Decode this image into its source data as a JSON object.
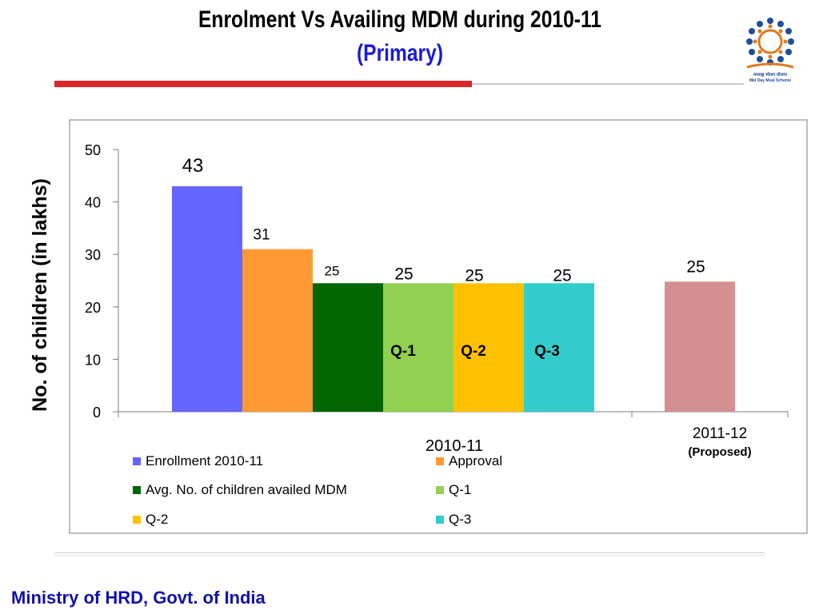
{
  "slide": {
    "title": "Enrolment Vs Availing MDM during  2010-11",
    "subtitle": "(Primary)",
    "footer": "Ministry of HRD, Govt. of India",
    "logo_text_1": "मध्याह्न भोजन योजना",
    "logo_text_2": "Mid Day Meal Scheme"
  },
  "chart_data": {
    "type": "bar",
    "ylabel": "No. of children (in lakhs)",
    "ylim": [
      0,
      50
    ],
    "yticks": [
      "0",
      "10",
      "20",
      "30",
      "40",
      "50"
    ],
    "groups": [
      {
        "label": "2010-11",
        "sublabel": ""
      },
      {
        "label": "2011-12",
        "sublabel": "(Proposed)"
      }
    ],
    "bars": [
      {
        "group": 0,
        "series": "Enrollment 2010-11",
        "value": 43,
        "data_label": "43",
        "inner_label": "",
        "color": "#6666ff"
      },
      {
        "group": 0,
        "series": "Approval",
        "value": 31,
        "data_label": "31",
        "inner_label": "",
        "color": "#ff9933"
      },
      {
        "group": 0,
        "series": "Avg. No. of children availed MDM",
        "value": 24.5,
        "data_label": "25",
        "inner_label": "",
        "color": "#006600"
      },
      {
        "group": 0,
        "series": "Q-1",
        "value": 24.5,
        "data_label": "25",
        "inner_label": "Q-1",
        "color": "#92d050"
      },
      {
        "group": 0,
        "series": "Q-2",
        "value": 24.5,
        "data_label": "25",
        "inner_label": "Q-2",
        "color": "#ffc000"
      },
      {
        "group": 0,
        "series": "Q-3",
        "value": 24.5,
        "data_label": "25",
        "inner_label": "Q-3",
        "color": "#33cccc"
      },
      {
        "group": 1,
        "series": "",
        "value": 24.8,
        "data_label": "25",
        "inner_label": "",
        "color": "#d49090"
      }
    ],
    "legend": [
      {
        "label": "Enrollment 2010-11",
        "color": "#6666ff"
      },
      {
        "label": "Approval",
        "color": "#ff9933"
      },
      {
        "label": "Avg. No. of children availed MDM",
        "color": "#006600"
      },
      {
        "label": "Q-1",
        "color": "#92d050"
      },
      {
        "label": "Q-2",
        "color": "#ffc000"
      },
      {
        "label": "Q-3",
        "color": "#33cccc"
      }
    ],
    "legend_position": "bottom",
    "grid": false
  }
}
